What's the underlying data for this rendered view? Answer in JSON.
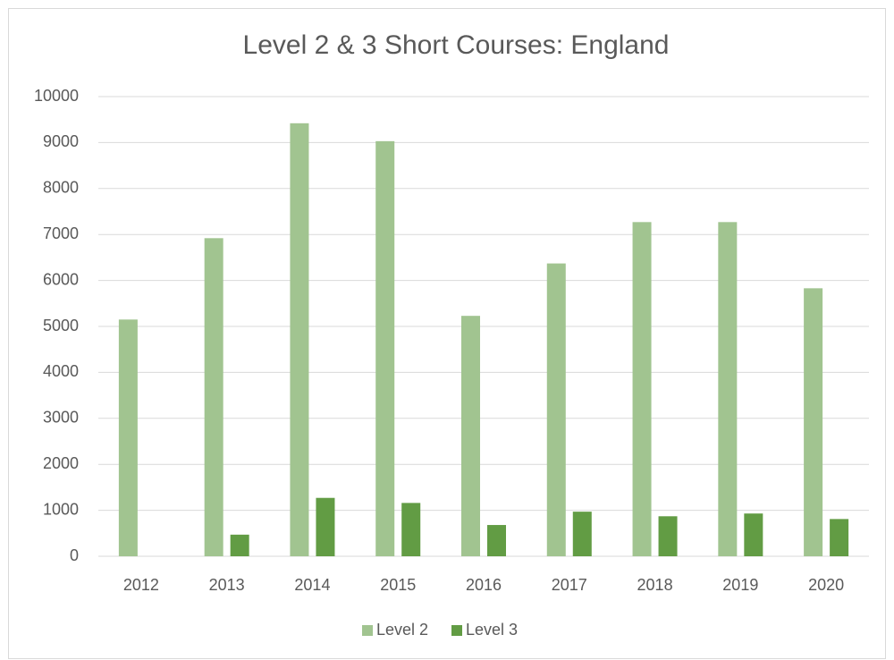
{
  "chart_data": {
    "type": "bar",
    "title": "Level 2 & 3 Short Courses: England",
    "categories": [
      "2012",
      "2013",
      "2014",
      "2015",
      "2016",
      "2017",
      "2018",
      "2019",
      "2020"
    ],
    "series": [
      {
        "name": "Level 2",
        "color": "#a1c490",
        "values": [
          5150,
          6920,
          9420,
          9030,
          5230,
          6370,
          7270,
          7270,
          5830
        ]
      },
      {
        "name": "Level 3",
        "color": "#629c44",
        "values": [
          0,
          470,
          1270,
          1160,
          680,
          970,
          870,
          930,
          810
        ]
      }
    ],
    "ylim": [
      0,
      10000
    ],
    "yticks": [
      0,
      1000,
      2000,
      3000,
      4000,
      5000,
      6000,
      7000,
      8000,
      9000,
      10000
    ],
    "grid": true,
    "legend": "bottom"
  }
}
